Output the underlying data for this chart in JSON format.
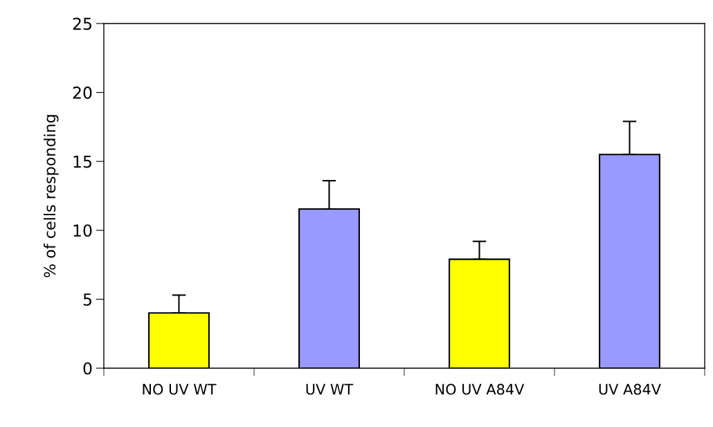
{
  "chart_data": {
    "type": "bar",
    "ylabel": "% of cells responding",
    "categories": [
      "NO UV WT",
      "UV WT",
      "NO UV A84V",
      "UV A84V"
    ],
    "values": [
      4.0,
      11.55,
      7.9,
      15.5
    ],
    "colors": [
      "#ffff00",
      "#9999ff",
      "#ffff00",
      "#9999ff"
    ],
    "errors": [
      [
        4.0,
        5.3
      ],
      [
        11.55,
        13.6
      ],
      [
        7.9,
        9.2
      ],
      [
        15.5,
        17.9
      ]
    ],
    "ylim": [
      0,
      25
    ],
    "yticks": [
      0,
      5,
      10,
      15,
      20,
      25
    ],
    "grid": false
  }
}
